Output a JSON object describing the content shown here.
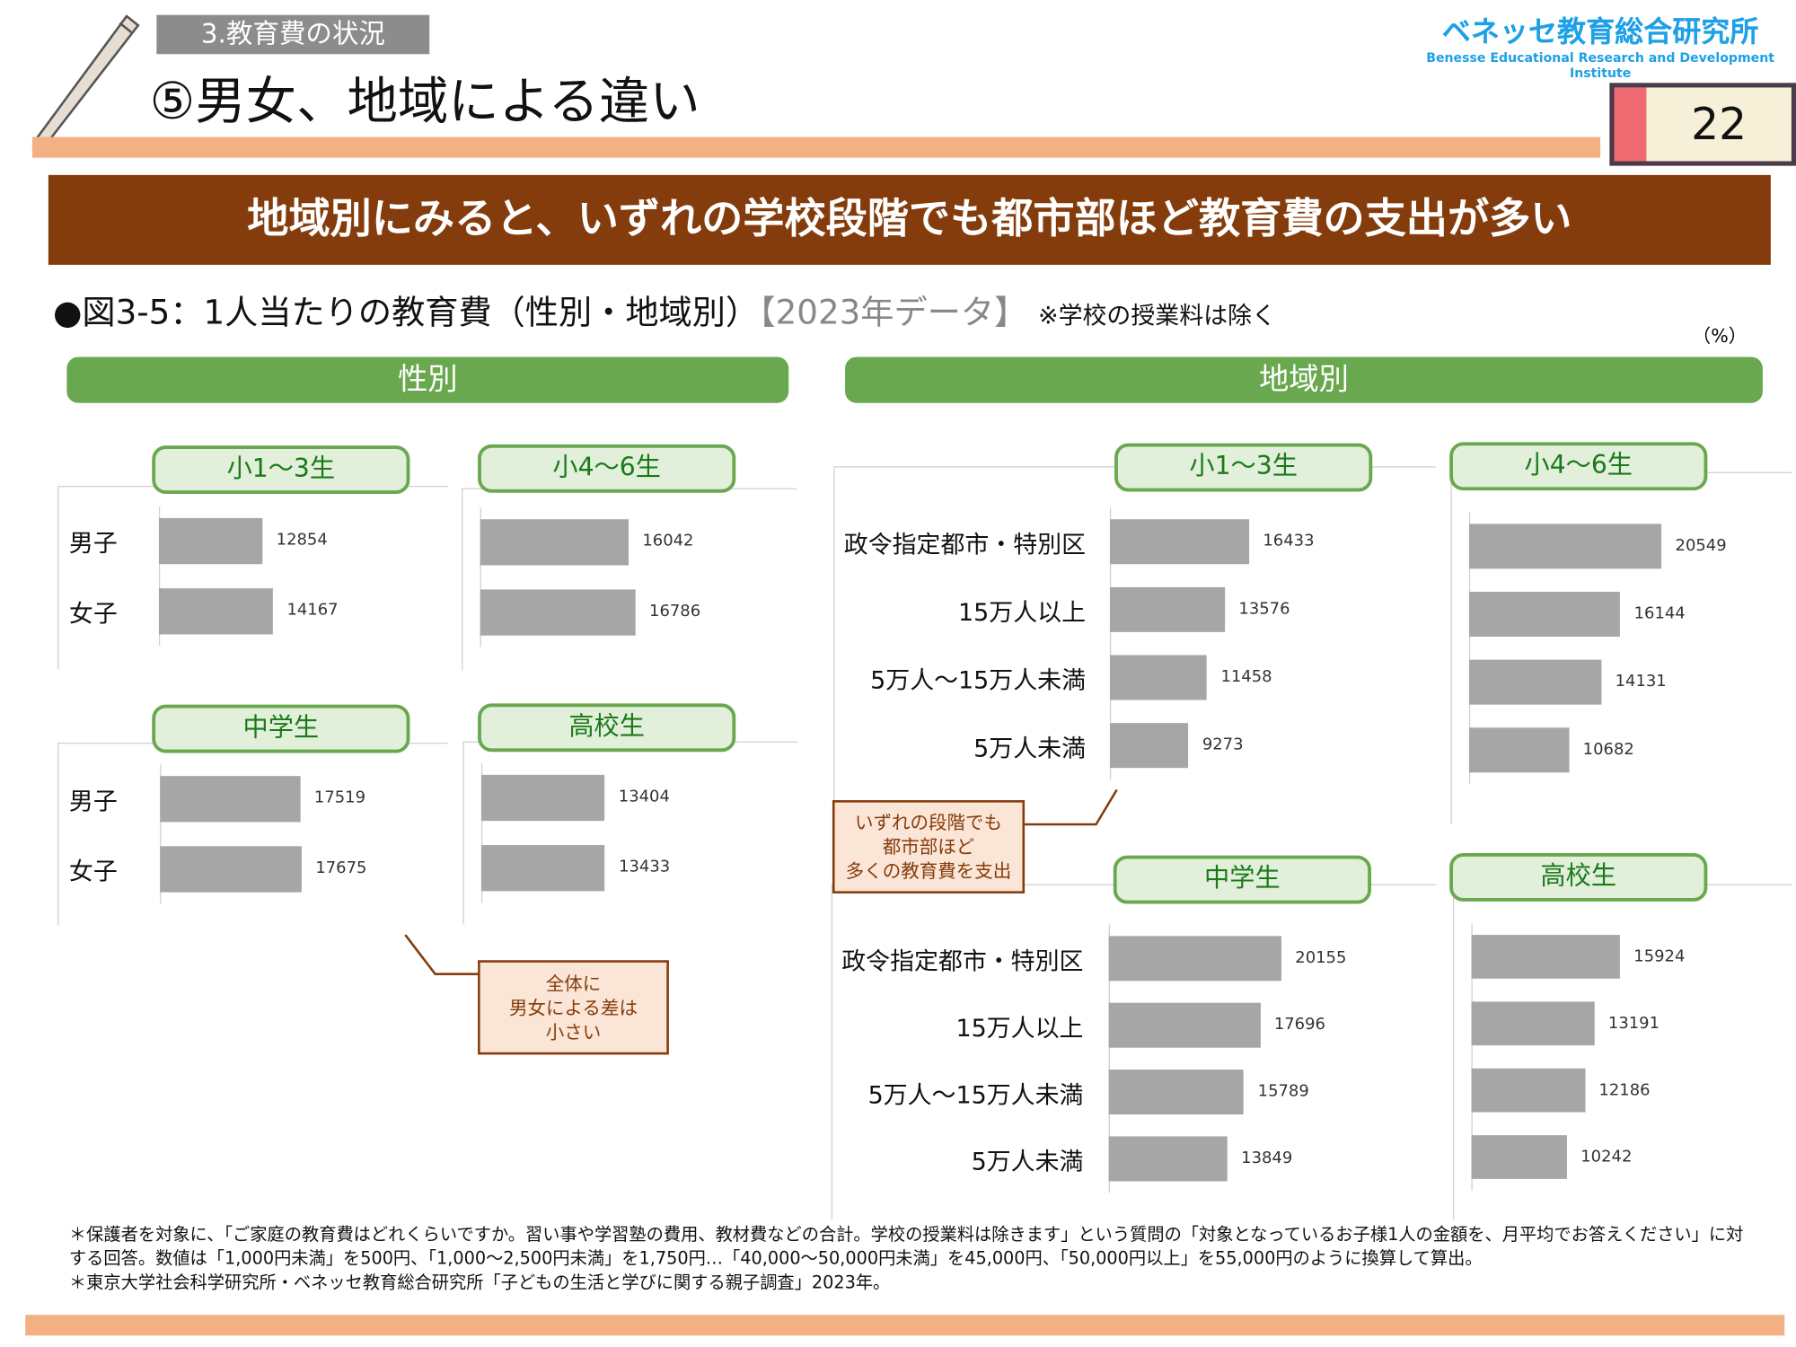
{
  "header": {
    "section": "3.教育費の状況",
    "title": "⑤男女、地域による違い",
    "logo_jp": "ベネッセ教育総合研究所",
    "logo_en": "Benesse Educational Research and Development Institute",
    "page_number": "22"
  },
  "banner": "地域別にみると、いずれの学校段階でも都市部ほど教育費の支出が多い",
  "figure": {
    "title": "●図3-5：1人当たりの教育費（性別・地域別）",
    "year": "【2023年データ】",
    "note": "※学校の授業料は除く",
    "unit": "（%）"
  },
  "groups": {
    "gender": "性別",
    "region": "地域別"
  },
  "callouts": {
    "gender": [
      "全体に",
      "男女による差は",
      "小さい"
    ],
    "region": [
      "いずれの段階でも",
      "都市部ほど",
      "多くの教育費を支出"
    ]
  },
  "colors": {
    "bar": "#a6a6a6",
    "accent_green": "#6aa84f",
    "banner": "#843c0c",
    "orange": "#f3b183"
  },
  "chart_data": [
    {
      "type": "bar",
      "orientation": "horizontal",
      "title": "小1～3生",
      "group": "性別",
      "categories": [
        "男子",
        "女子"
      ],
      "values": [
        12854,
        14167
      ]
    },
    {
      "type": "bar",
      "orientation": "horizontal",
      "title": "小4～6生",
      "group": "性別",
      "categories": [
        "男子",
        "女子"
      ],
      "values": [
        16042,
        16786
      ]
    },
    {
      "type": "bar",
      "orientation": "horizontal",
      "title": "中学生",
      "group": "性別",
      "categories": [
        "男子",
        "女子"
      ],
      "values": [
        17519,
        17675
      ]
    },
    {
      "type": "bar",
      "orientation": "horizontal",
      "title": "高校生",
      "group": "性別",
      "categories": [
        "男子",
        "女子"
      ],
      "values": [
        13404,
        13433
      ]
    },
    {
      "type": "bar",
      "orientation": "horizontal",
      "title": "小1～3生",
      "group": "地域別",
      "categories": [
        "政令指定都市・特別区",
        "15万人以上",
        "5万人～15万人未満",
        "5万人未満"
      ],
      "values": [
        16433,
        13576,
        11458,
        9273
      ]
    },
    {
      "type": "bar",
      "orientation": "horizontal",
      "title": "小4～6生",
      "group": "地域別",
      "categories": [
        "政令指定都市・特別区",
        "15万人以上",
        "5万人～15万人未満",
        "5万人未満"
      ],
      "values": [
        20549,
        16144,
        14131,
        10682
      ]
    },
    {
      "type": "bar",
      "orientation": "horizontal",
      "title": "中学生",
      "group": "地域別",
      "categories": [
        "政令指定都市・特別区",
        "15万人以上",
        "5万人～15万人未満",
        "5万人未満"
      ],
      "values": [
        20155,
        17696,
        15789,
        13849
      ]
    },
    {
      "type": "bar",
      "orientation": "horizontal",
      "title": "高校生",
      "group": "地域別",
      "categories": [
        "政令指定都市・特別区",
        "15万人以上",
        "5万人～15万人未満",
        "5万人未満"
      ],
      "values": [
        15924,
        13191,
        12186,
        10242
      ]
    }
  ],
  "footnotes": [
    "＊保護者を対象に、「ご家庭の教育費はどれくらいですか。習い事や学習塾の費用、教材費などの合計。学校の授業料は除きます」という質問の「対象となっているお子様1人の金額を、月平均でお答えください」に対する回答。数値は「1,000円未満」を500円、「1,000～2,500円未満」を1,750円…「40,000～50,000円未満」を45,000円、「50,000円以上」を55,000円のように換算して算出。",
    "＊東京大学社会科学研究所・ベネッセ教育総合研究所「子どもの生活と学びに関する親子調査」2023年。"
  ]
}
